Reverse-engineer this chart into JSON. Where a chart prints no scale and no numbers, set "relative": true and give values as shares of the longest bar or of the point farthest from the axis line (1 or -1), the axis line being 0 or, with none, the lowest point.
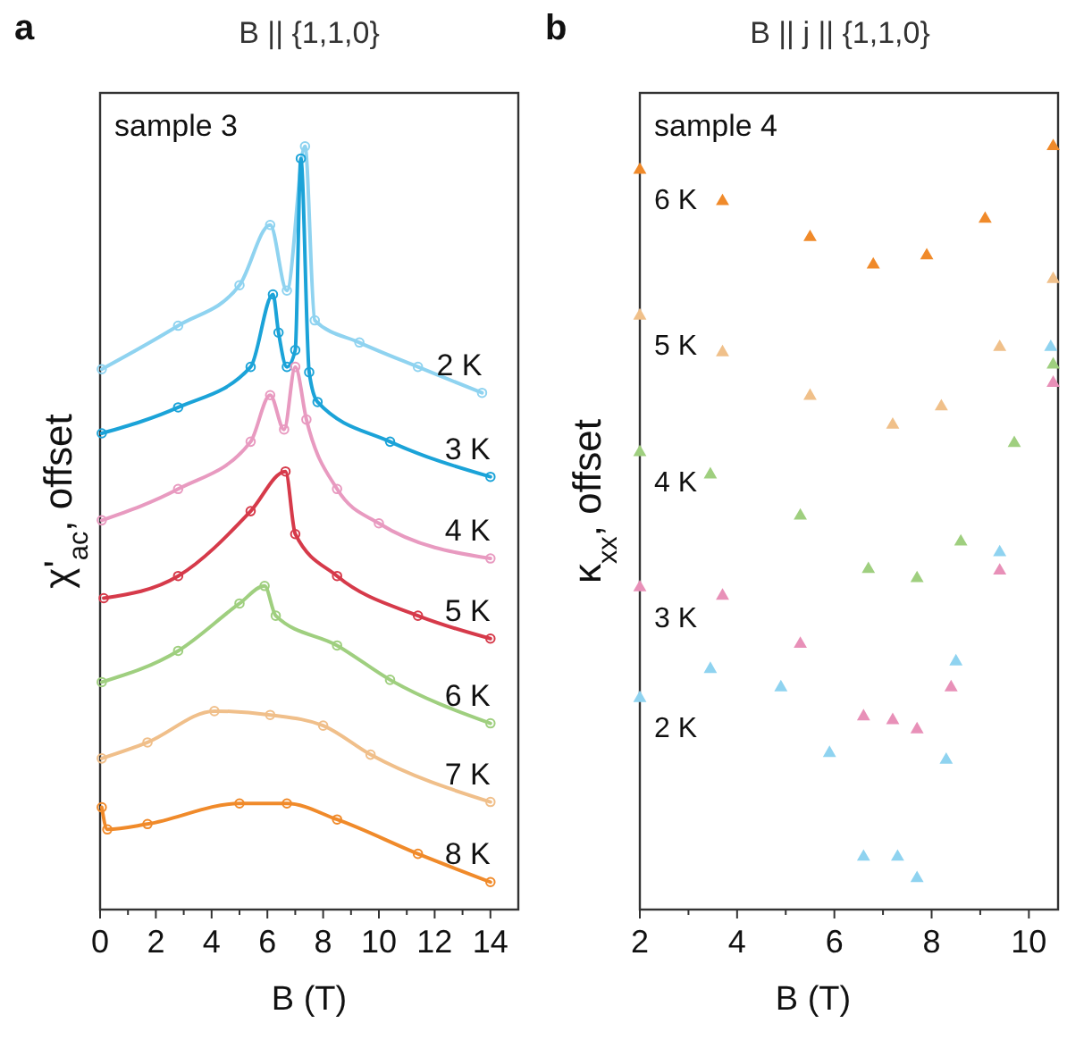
{
  "chart_data": [
    {
      "type": "line",
      "title": "B || {1,1,0}",
      "xlabel": "B (T)",
      "ylabel": "χ'$_{ac}$, offset",
      "relative": true,
      "marker": "circle",
      "grid": false,
      "annotations": [
        "a",
        "sample 3"
      ],
      "xlim": [
        0,
        15
      ],
      "xticks": [
        0,
        {
          "value": 1,
          "label": null
        },
        2,
        {
          "value": 3,
          "label": null
        },
        4,
        {
          "value": 5,
          "label": null
        },
        6,
        {
          "value": 7,
          "label": null
        },
        8,
        {
          "value": 9,
          "label": null
        },
        10,
        {
          "value": 11,
          "label": null
        },
        12,
        {
          "value": 13,
          "label": null
        },
        14
      ],
      "series": [
        {
          "name": "2 K",
          "color": "#8fd3f0",
          "x": [
            0.06,
            2.8,
            5.0,
            6.1,
            6.7,
            7.35,
            7.7,
            9.3,
            11.4,
            13.7
          ],
          "values": [
            0.708,
            0.765,
            0.818,
            0.897,
            0.811,
            1.0,
            0.772,
            0.743,
            0.711,
            0.677
          ]
        },
        {
          "name": "3 K",
          "color": "#1ba3d8",
          "x": [
            0.06,
            2.8,
            5.4,
            6.2,
            6.4,
            6.7,
            7.0,
            7.2,
            7.5,
            7.8,
            10.4,
            14.0
          ],
          "values": [
            0.624,
            0.658,
            0.711,
            0.806,
            0.756,
            0.711,
            0.733,
            0.984,
            0.704,
            0.665,
            0.613,
            0.567
          ]
        },
        {
          "name": "4 K",
          "color": "#e89ac0",
          "x": [
            0.06,
            2.8,
            5.4,
            6.1,
            6.6,
            7.0,
            7.4,
            8.5,
            10.0,
            14.0
          ],
          "values": [
            0.51,
            0.551,
            0.613,
            0.674,
            0.629,
            0.711,
            0.642,
            0.551,
            0.506,
            0.46
          ]
        },
        {
          "name": "5 K",
          "color": "#d63a4a",
          "x": [
            0.13,
            2.8,
            5.4,
            6.65,
            7.0,
            8.5,
            11.4,
            14.0
          ],
          "values": [
            0.408,
            0.437,
            0.522,
            0.574,
            0.492,
            0.437,
            0.385,
            0.355
          ]
        },
        {
          "name": "6 K",
          "color": "#9fcf7f",
          "x": [
            0.06,
            2.8,
            5.0,
            5.9,
            6.3,
            8.5,
            10.4,
            14.0
          ],
          "values": [
            0.298,
            0.339,
            0.401,
            0.424,
            0.385,
            0.346,
            0.301,
            0.244
          ]
        },
        {
          "name": "7 K",
          "color": "#f0bf8a",
          "x": [
            0.06,
            1.7,
            4.1,
            6.1,
            8.0,
            9.7,
            14.0
          ],
          "values": [
            0.198,
            0.219,
            0.26,
            0.255,
            0.241,
            0.203,
            0.141
          ]
        },
        {
          "name": "8 K",
          "color": "#f08a2a",
          "x": [
            0.06,
            0.26,
            1.7,
            5.0,
            6.7,
            8.5,
            11.4,
            14.0
          ],
          "values": [
            0.134,
            0.105,
            0.112,
            0.139,
            0.139,
            0.118,
            0.073,
            0.036
          ]
        }
      ]
    },
    {
      "type": "scatter",
      "title": "B || j || {1,1,0}",
      "xlabel": "B (T)",
      "ylabel": "κ$_{xx}$, offset",
      "relative": true,
      "marker": "triangle",
      "grid": false,
      "annotations": [
        "b",
        "sample 4"
      ],
      "xlim": [
        2,
        10.6
      ],
      "xticks": [
        2,
        {
          "value": 3,
          "label": null
        },
        4,
        {
          "value": 5,
          "label": null
        },
        6,
        {
          "value": 7,
          "label": null
        },
        8,
        {
          "value": 9,
          "label": null
        },
        10
      ],
      "series": [
        {
          "name": "6 K",
          "color": "#f08a2a",
          "x": [
            2.0,
            3.7,
            5.5,
            6.8,
            7.9,
            9.1,
            10.5
          ],
          "values": [
            0.969,
            0.928,
            0.881,
            0.845,
            0.857,
            0.905,
            1.0
          ]
        },
        {
          "name": "5 K",
          "color": "#f0c08a",
          "x": [
            2.0,
            3.7,
            5.5,
            7.2,
            8.2,
            9.4,
            10.5
          ],
          "values": [
            0.778,
            0.73,
            0.673,
            0.635,
            0.659,
            0.737,
            0.826
          ]
        },
        {
          "name": "4 K",
          "color": "#9fcf7f",
          "x": [
            2.0,
            3.45,
            5.3,
            6.7,
            7.7,
            8.6,
            9.7,
            10.5
          ],
          "values": [
            0.599,
            0.57,
            0.516,
            0.446,
            0.434,
            0.482,
            0.611,
            0.714
          ]
        },
        {
          "name": "3 K",
          "color": "#e890b8",
          "x": [
            2.0,
            3.7,
            5.3,
            6.6,
            7.2,
            7.7,
            8.4,
            9.4,
            10.5
          ],
          "values": [
            0.422,
            0.411,
            0.348,
            0.253,
            0.248,
            0.236,
            0.291,
            0.444,
            0.69
          ]
        },
        {
          "name": "2 K",
          "color": "#8fd3f0",
          "x": [
            2.0,
            3.45,
            4.9,
            5.9,
            6.6,
            7.3,
            7.7,
            8.3,
            8.5,
            9.4,
            10.45
          ],
          "values": [
            0.277,
            0.315,
            0.291,
            0.205,
            0.069,
            0.069,
            0.041,
            0.196,
            0.325,
            0.468,
            0.737
          ]
        }
      ]
    }
  ]
}
